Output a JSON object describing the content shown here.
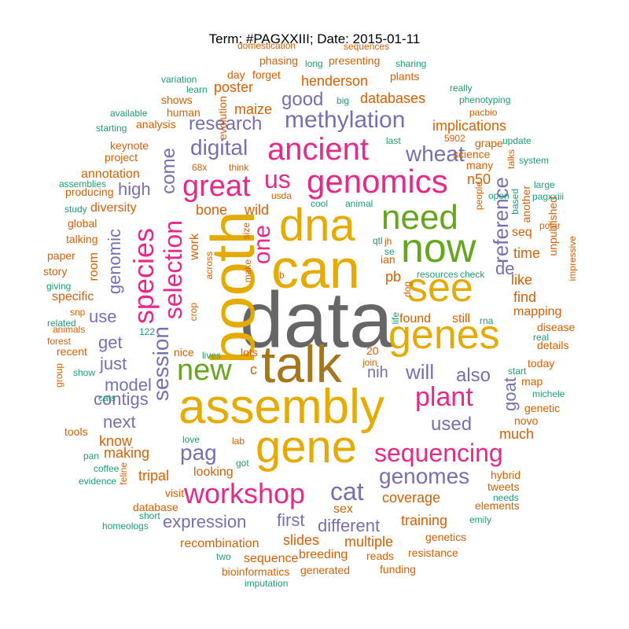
{
  "title": "Term: #PAGXXIII; Date: 2015-01-11",
  "palette": {
    "teal": "#1b9e77",
    "orange": "#d95f02",
    "purple": "#7570b3",
    "magenta": "#e7298a",
    "green": "#66a61e",
    "gold": "#e6ab02",
    "brown": "#a6761d",
    "gray": "#666666"
  },
  "words": [
    {
      "text": "data",
      "color": "gray"
    },
    {
      "text": "talk",
      "color": "brown"
    },
    {
      "text": "booth",
      "color": "gold"
    },
    {
      "text": "can",
      "color": "gold"
    },
    {
      "text": "assembly",
      "color": "gold"
    },
    {
      "text": "dna",
      "color": "gold"
    },
    {
      "text": "gene",
      "color": "gold"
    },
    {
      "text": "genes",
      "color": "gold"
    },
    {
      "text": "see",
      "color": "gold"
    },
    {
      "text": "now",
      "color": "green"
    },
    {
      "text": "need",
      "color": "green"
    },
    {
      "text": "genomics",
      "color": "magenta"
    },
    {
      "text": "ancient",
      "color": "magenta"
    },
    {
      "text": "great",
      "color": "magenta"
    },
    {
      "text": "us",
      "color": "magenta"
    },
    {
      "text": "new",
      "color": "green"
    },
    {
      "text": "workshop",
      "color": "magenta"
    },
    {
      "text": "sequencing",
      "color": "magenta"
    },
    {
      "text": "plant",
      "color": "magenta"
    },
    {
      "text": "species",
      "color": "magenta"
    },
    {
      "text": "selection",
      "color": "magenta"
    },
    {
      "text": "one",
      "color": "magenta"
    },
    {
      "text": "session",
      "color": "purple"
    },
    {
      "text": "methylation",
      "color": "purple"
    },
    {
      "text": "wheat",
      "color": "purple"
    },
    {
      "text": "digital",
      "color": "purple"
    },
    {
      "text": "reference",
      "color": "purple"
    },
    {
      "text": "pag",
      "color": "purple"
    },
    {
      "text": "cat",
      "color": "purple"
    },
    {
      "text": "genomes",
      "color": "purple"
    },
    {
      "text": "used",
      "color": "purple"
    },
    {
      "text": "will",
      "color": "purple"
    },
    {
      "text": "also",
      "color": "purple"
    },
    {
      "text": "research",
      "color": "purple"
    },
    {
      "text": "good",
      "color": "purple"
    },
    {
      "text": "come",
      "color": "purple"
    },
    {
      "text": "high",
      "color": "purple"
    },
    {
      "text": "get",
      "color": "purple"
    },
    {
      "text": "just",
      "color": "purple"
    },
    {
      "text": "model",
      "color": "purple"
    },
    {
      "text": "contigs",
      "color": "purple"
    },
    {
      "text": "use",
      "color": "purple"
    },
    {
      "text": "genomic",
      "color": "purple"
    },
    {
      "text": "next",
      "color": "purple"
    },
    {
      "text": "nih",
      "color": "purple"
    },
    {
      "text": "goat",
      "color": "purple"
    },
    {
      "text": "expression",
      "color": "purple"
    },
    {
      "text": "first",
      "color": "purple"
    },
    {
      "text": "different",
      "color": "purple"
    },
    {
      "text": "de",
      "color": "purple"
    },
    {
      "text": "n50",
      "color": "orange"
    },
    {
      "text": "databases",
      "color": "orange"
    },
    {
      "text": "implications",
      "color": "orange"
    },
    {
      "text": "henderson",
      "color": "orange"
    },
    {
      "text": "maize",
      "color": "orange"
    },
    {
      "text": "poster",
      "color": "orange"
    },
    {
      "text": "bone",
      "color": "orange"
    },
    {
      "text": "wild",
      "color": "orange"
    },
    {
      "text": "work",
      "color": "orange"
    },
    {
      "text": "room",
      "color": "orange"
    },
    {
      "text": "coverage",
      "color": "orange"
    },
    {
      "text": "training",
      "color": "orange"
    },
    {
      "text": "multiple",
      "color": "orange"
    },
    {
      "text": "slides",
      "color": "orange"
    },
    {
      "text": "tripal",
      "color": "orange"
    },
    {
      "text": "making",
      "color": "orange"
    },
    {
      "text": "know",
      "color": "orange"
    },
    {
      "text": "recombination",
      "color": "orange"
    },
    {
      "text": "sequence",
      "color": "orange"
    },
    {
      "text": "breeding",
      "color": "orange"
    },
    {
      "text": "looking",
      "color": "orange"
    },
    {
      "text": "pb",
      "color": "orange"
    },
    {
      "text": "time",
      "color": "orange"
    },
    {
      "text": "find",
      "color": "orange"
    },
    {
      "text": "like",
      "color": "orange"
    },
    {
      "text": "seq",
      "color": "orange"
    },
    {
      "text": "mapping",
      "color": "orange"
    },
    {
      "text": "much",
      "color": "orange"
    },
    {
      "text": "sex",
      "color": "orange"
    },
    {
      "text": "c",
      "color": "orange"
    },
    {
      "text": "diversity",
      "color": "orange"
    },
    {
      "text": "annotation",
      "color": "orange"
    },
    {
      "text": "specific",
      "color": "orange"
    },
    {
      "text": "found",
      "color": "orange"
    },
    {
      "text": "still",
      "color": "orange"
    },
    {
      "text": "phasing",
      "color": "orange"
    },
    {
      "text": "presenting",
      "color": "orange"
    },
    {
      "text": "evolution",
      "color": "orange"
    },
    {
      "text": "science",
      "color": "orange"
    },
    {
      "text": "many",
      "color": "orange"
    },
    {
      "text": "grape",
      "color": "orange"
    },
    {
      "text": "another",
      "color": "orange"
    },
    {
      "text": "unpublished",
      "color": "orange"
    },
    {
      "text": "domestication",
      "color": "orange"
    },
    {
      "text": "sequences",
      "color": "orange"
    },
    {
      "text": "day",
      "color": "orange"
    },
    {
      "text": "forget",
      "color": "orange"
    },
    {
      "text": "plants",
      "color": "orange"
    },
    {
      "text": "shows",
      "color": "orange"
    },
    {
      "text": "human",
      "color": "orange"
    },
    {
      "text": "analysis",
      "color": "orange"
    },
    {
      "text": "keynote",
      "color": "orange"
    },
    {
      "text": "project",
      "color": "orange"
    },
    {
      "text": "producing",
      "color": "orange"
    },
    {
      "text": "global",
      "color": "orange"
    },
    {
      "text": "talking",
      "color": "orange"
    },
    {
      "text": "paper",
      "color": "orange"
    },
    {
      "text": "story",
      "color": "orange"
    },
    {
      "text": "snp",
      "color": "orange"
    },
    {
      "text": "animals",
      "color": "orange"
    },
    {
      "text": "forest",
      "color": "orange"
    },
    {
      "text": "recent",
      "color": "orange"
    },
    {
      "text": "tools",
      "color": "orange"
    },
    {
      "text": "visit",
      "color": "orange"
    },
    {
      "text": "database",
      "color": "orange"
    },
    {
      "text": "generated",
      "color": "orange"
    },
    {
      "text": "bioinformatics",
      "color": "orange"
    },
    {
      "text": "reads",
      "color": "orange"
    },
    {
      "text": "funding",
      "color": "orange"
    },
    {
      "text": "genetics",
      "color": "orange"
    },
    {
      "text": "resistance",
      "color": "orange"
    },
    {
      "text": "elements",
      "color": "orange"
    },
    {
      "text": "tweets",
      "color": "orange"
    },
    {
      "text": "hybrid",
      "color": "orange"
    },
    {
      "text": "novo",
      "color": "orange"
    },
    {
      "text": "genetic",
      "color": "orange"
    },
    {
      "text": "map",
      "color": "orange"
    },
    {
      "text": "today",
      "color": "orange"
    },
    {
      "text": "details",
      "color": "orange"
    },
    {
      "text": "disease",
      "color": "orange"
    },
    {
      "text": "impressive",
      "color": "orange"
    },
    {
      "text": "nice",
      "color": "orange"
    },
    {
      "text": "lots",
      "color": "orange"
    },
    {
      "text": "crop",
      "color": "orange"
    },
    {
      "text": "across",
      "color": "orange"
    },
    {
      "text": "make",
      "color": "orange"
    },
    {
      "text": "size",
      "color": "orange"
    },
    {
      "text": "usda",
      "color": "orange"
    },
    {
      "text": "think",
      "color": "orange"
    },
    {
      "text": "68x",
      "color": "orange"
    },
    {
      "text": "5902",
      "color": "orange"
    },
    {
      "text": "b",
      "color": "orange"
    },
    {
      "text": "ian",
      "color": "orange"
    },
    {
      "text": "jh",
      "color": "orange"
    },
    {
      "text": "20",
      "color": "orange"
    },
    {
      "text": "join",
      "color": "orange"
    },
    {
      "text": "lab",
      "color": "orange"
    },
    {
      "text": "people",
      "color": "orange"
    },
    {
      "text": "talks",
      "color": "orange"
    },
    {
      "text": "pacbio",
      "color": "orange"
    },
    {
      "text": "feline",
      "color": "orange"
    },
    {
      "text": "group",
      "color": "orange"
    },
    {
      "text": "dog",
      "color": "orange"
    },
    {
      "text": "polar",
      "color": "orange"
    },
    {
      "text": "long",
      "color": "teal"
    },
    {
      "text": "sharing",
      "color": "teal"
    },
    {
      "text": "variation",
      "color": "teal"
    },
    {
      "text": "learn",
      "color": "teal"
    },
    {
      "text": "big",
      "color": "teal"
    },
    {
      "text": "really",
      "color": "teal"
    },
    {
      "text": "phenotyping",
      "color": "teal"
    },
    {
      "text": "available",
      "color": "teal"
    },
    {
      "text": "starting",
      "color": "teal"
    },
    {
      "text": "update",
      "color": "teal"
    },
    {
      "text": "last",
      "color": "teal"
    },
    {
      "text": "system",
      "color": "teal"
    },
    {
      "text": "large",
      "color": "teal"
    },
    {
      "text": "pagxxiii",
      "color": "teal"
    },
    {
      "text": "assemblies",
      "color": "teal"
    },
    {
      "text": "study",
      "color": "teal"
    },
    {
      "text": "cool",
      "color": "teal"
    },
    {
      "text": "animal",
      "color": "teal"
    },
    {
      "text": "open",
      "color": "teal"
    },
    {
      "text": "based",
      "color": "teal"
    },
    {
      "text": "qtl",
      "color": "teal"
    },
    {
      "text": "se",
      "color": "teal"
    },
    {
      "text": "resources",
      "color": "teal"
    },
    {
      "text": "check",
      "color": "teal"
    },
    {
      "text": "giving",
      "color": "teal"
    },
    {
      "text": "related",
      "color": "teal"
    },
    {
      "text": "122",
      "color": "teal"
    },
    {
      "text": "life",
      "color": "teal"
    },
    {
      "text": "rna",
      "color": "teal"
    },
    {
      "text": "real",
      "color": "teal"
    },
    {
      "text": "start",
      "color": "teal"
    },
    {
      "text": "michele",
      "color": "teal"
    },
    {
      "text": "show",
      "color": "teal"
    },
    {
      "text": "cats",
      "color": "teal"
    },
    {
      "text": "lives",
      "color": "teal"
    },
    {
      "text": "love",
      "color": "teal"
    },
    {
      "text": "pan",
      "color": "teal"
    },
    {
      "text": "coffee",
      "color": "teal"
    },
    {
      "text": "evidence",
      "color": "teal"
    },
    {
      "text": "got",
      "color": "teal"
    },
    {
      "text": "short",
      "color": "teal"
    },
    {
      "text": "homeologs",
      "color": "teal"
    },
    {
      "text": "needs",
      "color": "teal"
    },
    {
      "text": "emily",
      "color": "teal"
    },
    {
      "text": "two",
      "color": "teal"
    },
    {
      "text": "imputation",
      "color": "teal"
    }
  ]
}
